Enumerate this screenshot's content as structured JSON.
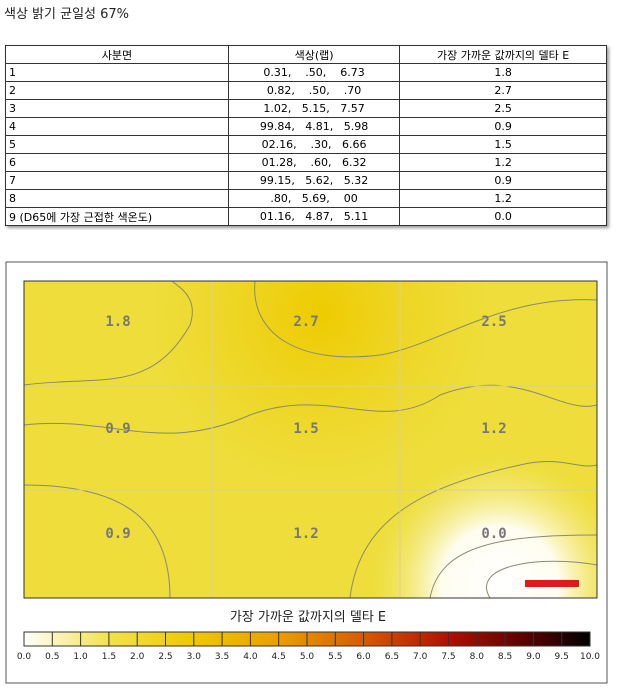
{
  "title": "색상 밝기 균일성 67%",
  "table": {
    "header": [
      "사분면",
      "색상(랩)",
      "가장 가까운 값까지의 델타 E"
    ],
    "rows": [
      [
        "1",
        "0.31,    .50,    6.73",
        "1.8"
      ],
      [
        "2",
        "0.82,    .50,    .70",
        "2.7"
      ],
      [
        "3",
        "1.02,   5.15,   7.57",
        "2.5"
      ],
      [
        "4",
        "99.84,   4.81,   5.98",
        "0.9"
      ],
      [
        "5",
        "02.16,    .30,   6.66",
        "1.5"
      ],
      [
        "6",
        "01.28,    .60,   6.32",
        "1.2"
      ],
      [
        "7",
        "99.15,   5.62,   5.32",
        "0.9"
      ],
      [
        "8",
        ".80,   5.69,    00",
        "1.2"
      ],
      [
        "9 (D65에 가장 근접한 색온도)",
        "01.16,   4.87,   5.11",
        "0.0"
      ]
    ]
  },
  "heatmap": {
    "cells": [
      [
        "1.8",
        "2.7",
        "2.5"
      ],
      [
        "0.9",
        "1.5",
        "1.2"
      ],
      [
        "0.9",
        "1.2",
        "0.0"
      ]
    ],
    "legend_title": "가장 가까운 값까지의 델타 E",
    "scale_labels": [
      "0.0",
      "0.5",
      "1.0",
      "1.5",
      "2.0",
      "2.5",
      "3.0",
      "3.5",
      "4.0",
      "4.5",
      "5.0",
      "5.5",
      "6.0",
      "6.5",
      "7.0",
      "7.5",
      "8.0",
      "8.5",
      "9.0",
      "9.5",
      "10.0"
    ]
  }
}
